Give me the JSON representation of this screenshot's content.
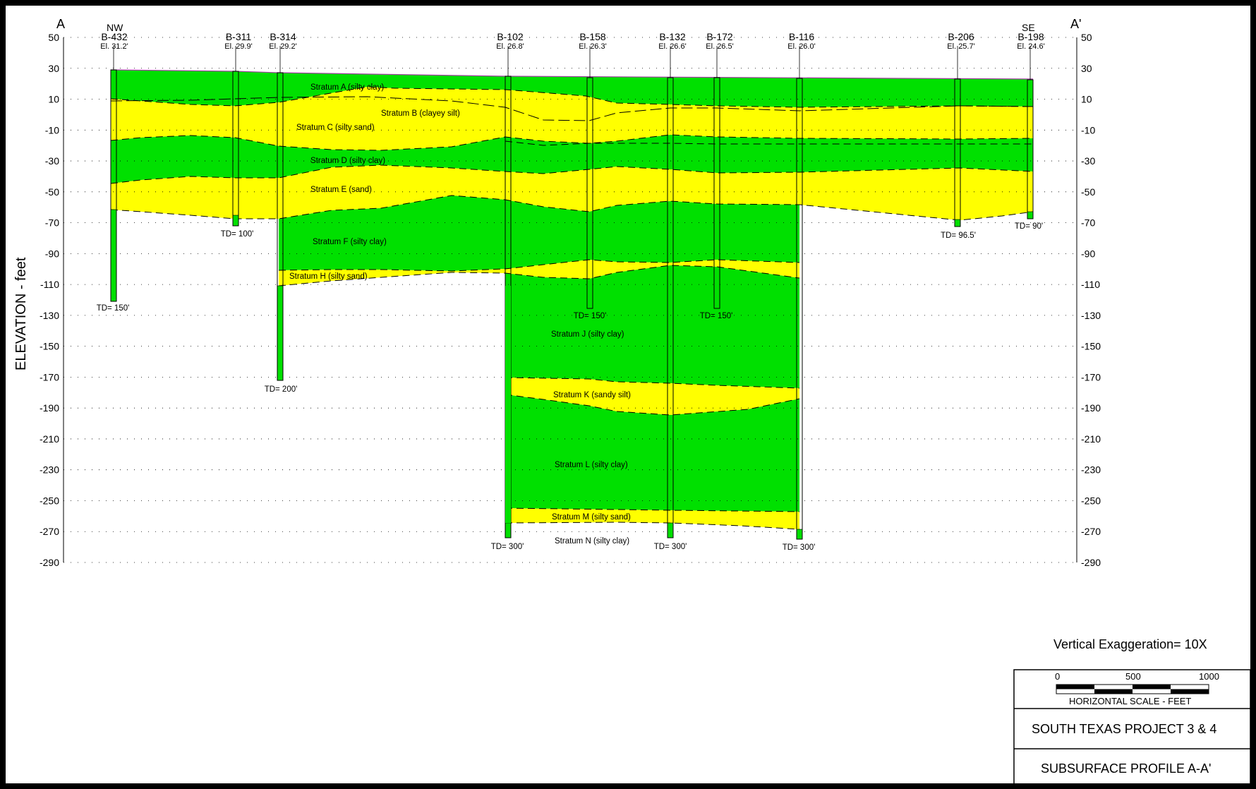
{
  "profile": {
    "start_label": "A",
    "end_label": "A'",
    "nw_label": "NW",
    "se_label": "SE",
    "ylabel": "ELEVATION - feet",
    "yticks": [
      "50",
      "30",
      "10",
      "-10",
      "-30",
      "-50",
      "-70",
      "-90",
      "-110",
      "-130",
      "-150",
      "-170",
      "-190",
      "-210",
      "-230",
      "-250",
      "-270",
      "-290"
    ]
  },
  "borings": [
    {
      "id": "B-432",
      "elev": "El. 31.2'",
      "td": "TD= 150'"
    },
    {
      "id": "B-311",
      "elev": "El. 29.9'",
      "td": "TD= 100'"
    },
    {
      "id": "B-314",
      "elev": "El. 29.2'",
      "td": "TD= 200'"
    },
    {
      "id": "B-102",
      "elev": "El. 26.8'",
      "td": "TD= 300'"
    },
    {
      "id": "B-158",
      "elev": "El. 26.3'",
      "td": "TD= 150'"
    },
    {
      "id": "B-132",
      "elev": "El. 26.6'",
      "td": "TD= 300'"
    },
    {
      "id": "B-172",
      "elev": "El. 26.5'",
      "td": "TD= 150'"
    },
    {
      "id": "B-116",
      "elev": "El. 26.0'",
      "td": "TD= 300'"
    },
    {
      "id": "B-206",
      "elev": "El. 25.7'",
      "td": "TD= 96.5'"
    },
    {
      "id": "B-198",
      "elev": "El. 24.6'",
      "td": "TD= 90'"
    }
  ],
  "strata": [
    {
      "name": "Stratum A (silty clay)"
    },
    {
      "name": "Stratum B (clayey silt)"
    },
    {
      "name": "Stratum C (silty sand)"
    },
    {
      "name": "Stratum D (silty clay)"
    },
    {
      "name": "Stratum E (sand)"
    },
    {
      "name": "Stratum F (silty clay)"
    },
    {
      "name": "Stratum H (silty sand)"
    },
    {
      "name": "Stratum J (silty clay)"
    },
    {
      "name": "Stratum K (sandy silt)"
    },
    {
      "name": "Stratum L (silty clay)"
    },
    {
      "name": "Stratum M (silty sand)"
    },
    {
      "name": "Stratum N (silty clay)"
    }
  ],
  "legend": {
    "vertical_exaggeration": "Vertical Exaggeration= 10X",
    "scale_ticks": [
      "0",
      "500",
      "1000"
    ],
    "scale_caption": "HORIZONTAL SCALE - FEET"
  },
  "title_block": {
    "project": "SOUTH TEXAS PROJECT 3 & 4",
    "drawing": "SUBSURFACE PROFILE A-A'"
  },
  "colors": {
    "clay": "#00e000",
    "sand": "#ffff00",
    "frame": "#000000",
    "ground_line": "#a040a0"
  }
}
